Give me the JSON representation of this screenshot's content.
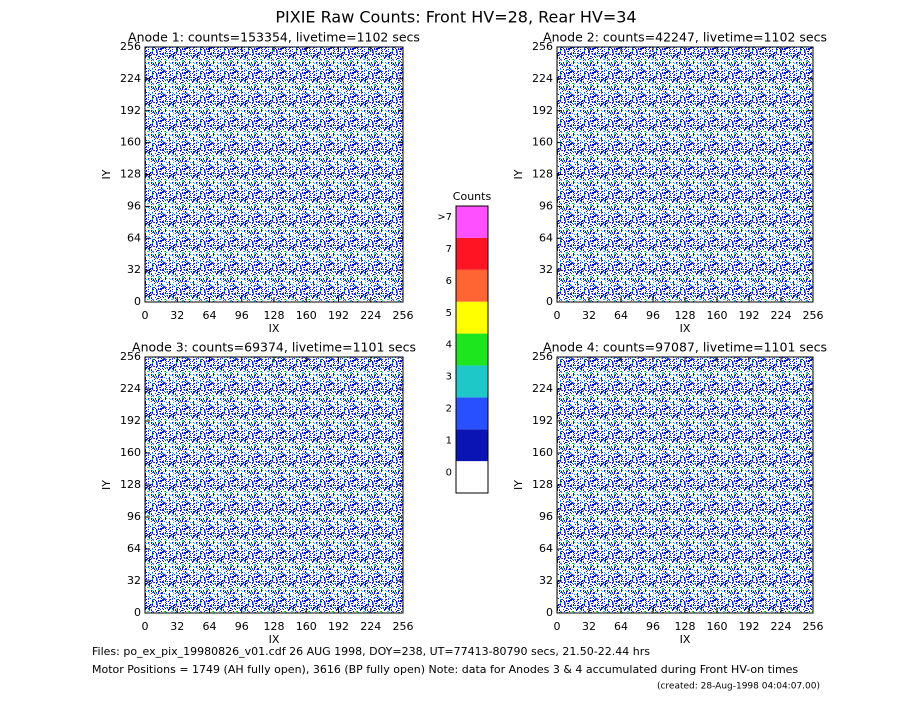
{
  "title": "PIXIE Raw Counts:  Front HV=28, Rear HV=34",
  "chart_data": [
    {
      "type": "heatmap",
      "title": "Anode 1: counts=153354, livetime=1102 secs",
      "xlabel": "IX",
      "ylabel": "IY",
      "xlim": [
        0,
        256
      ],
      "ylim": [
        0,
        256
      ],
      "xticks": [
        0,
        32,
        64,
        96,
        128,
        160,
        192,
        224,
        256
      ],
      "yticks": [
        0,
        32,
        64,
        96,
        128,
        160,
        192,
        224,
        256
      ]
    },
    {
      "type": "heatmap",
      "title": "Anode 2: counts=42247, livetime=1102 secs",
      "xlabel": "IX",
      "ylabel": "IY",
      "xlim": [
        0,
        256
      ],
      "ylim": [
        0,
        256
      ],
      "xticks": [
        0,
        32,
        64,
        96,
        128,
        160,
        192,
        224,
        256
      ],
      "yticks": [
        0,
        32,
        64,
        96,
        128,
        160,
        192,
        224,
        256
      ]
    },
    {
      "type": "heatmap",
      "title": "Anode 3: counts=69374, livetime=1101 secs",
      "xlabel": "IX",
      "ylabel": "IY",
      "xlim": [
        0,
        256
      ],
      "ylim": [
        0,
        256
      ],
      "xticks": [
        0,
        32,
        64,
        96,
        128,
        160,
        192,
        224,
        256
      ],
      "yticks": [
        0,
        32,
        64,
        96,
        128,
        160,
        192,
        224,
        256
      ]
    },
    {
      "type": "heatmap",
      "title": "Anode 4: counts=97087, livetime=1101 secs",
      "xlabel": "IX",
      "ylabel": "IY",
      "xlim": [
        0,
        256
      ],
      "ylim": [
        0,
        256
      ],
      "xticks": [
        0,
        32,
        64,
        96,
        128,
        160,
        192,
        224,
        256
      ],
      "yticks": [
        0,
        32,
        64,
        96,
        128,
        160,
        192,
        224,
        256
      ]
    }
  ],
  "colorbar": {
    "title": "Counts",
    "labels": [
      "0",
      "1",
      "2",
      "3",
      "4",
      "5",
      "6",
      "7",
      ">7"
    ],
    "colors": [
      "#ffffff",
      "#0a14b4",
      "#2850ff",
      "#1ec8c8",
      "#1ee61e",
      "#ffff00",
      "#ff6432",
      "#ff1423",
      "#ff50ff"
    ]
  },
  "footer": {
    "line1": "Files: po_ex_pix_19980826_v01.cdf     26 AUG 1998, DOY=238, UT=77413-80790 secs, 21.50-22.44 hrs",
    "line2": "Motor Positions = 1749 (AH fully open), 3616 (BP fully open)     Note: data for Anodes 3 & 4 accumulated during Front HV-on times",
    "created": "(created: 28-Aug-1998 04:04:07.00)"
  }
}
